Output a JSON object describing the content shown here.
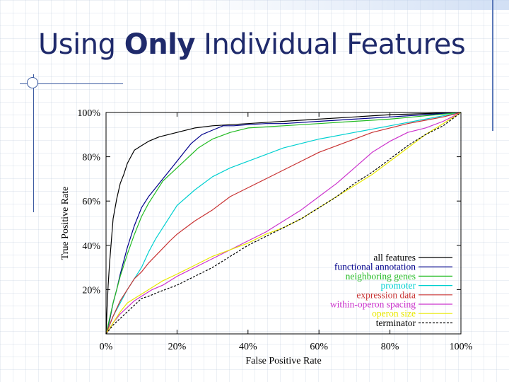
{
  "slide": {
    "title_prefix": "Using ",
    "title_emphasis": "Only",
    "title_suffix": " Individual Features"
  },
  "chart_data": {
    "type": "line",
    "xlabel": "False Positive Rate",
    "ylabel": "True Positive Rate",
    "xlim": [
      0,
      100
    ],
    "ylim": [
      0,
      100
    ],
    "x_ticks": [
      "0%",
      "20%",
      "40%",
      "60%",
      "80%",
      "100%"
    ],
    "y_ticks": [
      "20%",
      "40%",
      "60%",
      "80%",
      "100%"
    ],
    "legend_position": "bottom-right",
    "series": [
      {
        "name": "all features",
        "color": "#000000",
        "dash": "solid",
        "x": [
          0,
          0.3,
          0.6,
          1,
          1.5,
          2,
          3,
          4,
          5,
          6,
          7,
          8,
          10,
          12,
          15,
          20,
          25,
          30,
          40,
          50,
          60,
          70,
          80,
          90,
          100
        ],
        "y": [
          0,
          12,
          22,
          32,
          42,
          52,
          61,
          68,
          72,
          77,
          80,
          83,
          85,
          87,
          89,
          91,
          93,
          94,
          95,
          96,
          97,
          98,
          99,
          99.5,
          100
        ]
      },
      {
        "name": "functional annotation",
        "color": "#00008b",
        "dash": "solid",
        "x": [
          0,
          1,
          2,
          3,
          4,
          5,
          6,
          7,
          8,
          10,
          12,
          14,
          16,
          18,
          20,
          22,
          24,
          27,
          30,
          33,
          36,
          40,
          45,
          50,
          60,
          70,
          80,
          90,
          100
        ],
        "y": [
          0,
          6,
          14,
          20,
          27,
          33,
          39,
          44,
          49,
          57,
          62,
          66,
          70,
          74,
          78,
          82,
          86,
          90,
          92,
          94,
          94,
          94.5,
          95,
          95,
          96,
          97,
          98,
          99,
          100
        ]
      },
      {
        "name": "neighboring genes",
        "color": "#22bb22",
        "dash": "solid",
        "x": [
          0,
          2,
          4,
          6,
          8,
          10,
          12,
          14,
          16,
          18,
          20,
          22,
          24,
          26,
          28,
          30,
          35,
          40,
          50,
          60,
          70,
          80,
          90,
          100
        ],
        "y": [
          0,
          14,
          26,
          36,
          45,
          53,
          59,
          64,
          69,
          72,
          75,
          78,
          81,
          84,
          86,
          88,
          91,
          93,
          94,
          95,
          96,
          97,
          98.5,
          100
        ]
      },
      {
        "name": "promoter",
        "color": "#00d0d0",
        "dash": "solid",
        "x": [
          0,
          2,
          4,
          6,
          8,
          10,
          12,
          14,
          16,
          18,
          20,
          25,
          30,
          35,
          40,
          50,
          60,
          70,
          80,
          90,
          100
        ],
        "y": [
          0,
          8,
          14,
          20,
          25,
          30,
          37,
          43,
          48,
          53,
          58,
          65,
          71,
          75,
          78,
          84,
          88,
          91,
          94,
          97,
          100
        ]
      },
      {
        "name": "expression data",
        "color": "#c83232",
        "dash": "solid",
        "x": [
          0,
          2,
          4,
          6,
          8,
          10,
          12,
          15,
          18,
          20,
          25,
          30,
          35,
          40,
          45,
          50,
          55,
          60,
          65,
          70,
          75,
          80,
          85,
          90,
          95,
          100
        ],
        "y": [
          0,
          8,
          15,
          20,
          25,
          28,
          32,
          37,
          42,
          45,
          51,
          56,
          62,
          66,
          70,
          74,
          78,
          82,
          85,
          88,
          91,
          93,
          95,
          96.5,
          98,
          100
        ]
      },
      {
        "name": "within-operon spacing",
        "color": "#cc33cc",
        "dash": "solid",
        "x": [
          0,
          2,
          4,
          6,
          8,
          10,
          13,
          16,
          20,
          25,
          30,
          35,
          40,
          45,
          50,
          55,
          60,
          65,
          70,
          75,
          80,
          85,
          90,
          95,
          100
        ],
        "y": [
          0,
          5,
          9,
          12,
          15,
          17,
          20,
          22,
          26,
          30,
          34,
          38,
          42,
          46,
          51,
          56,
          62,
          68,
          75,
          82,
          87,
          91,
          93,
          96,
          100
        ]
      },
      {
        "name": "operon size",
        "color": "#e8e800",
        "dash": "solid",
        "x": [
          0,
          2,
          4,
          6,
          8,
          10,
          13,
          16,
          20,
          25,
          30,
          35,
          40,
          45,
          50,
          55,
          60,
          65,
          70,
          75,
          80,
          85,
          90,
          95,
          100
        ],
        "y": [
          0,
          5,
          10,
          14,
          16,
          18,
          21,
          24,
          27,
          31,
          35,
          38,
          41,
          45,
          48,
          52,
          57,
          62,
          67,
          72,
          78,
          84,
          90,
          95,
          100
        ]
      },
      {
        "name": "terminator",
        "color": "#000000",
        "dash": "dashed",
        "x": [
          0,
          2,
          4,
          6,
          8,
          10,
          12,
          15,
          20,
          25,
          30,
          35,
          40,
          45,
          50,
          55,
          60,
          65,
          70,
          75,
          80,
          85,
          90,
          95,
          100
        ],
        "y": [
          0,
          4,
          7,
          10,
          13,
          16,
          17,
          19,
          22,
          26,
          30,
          35,
          40,
          44,
          48,
          52,
          57,
          62,
          68,
          73,
          79,
          85,
          90,
          94,
          100
        ]
      }
    ]
  }
}
